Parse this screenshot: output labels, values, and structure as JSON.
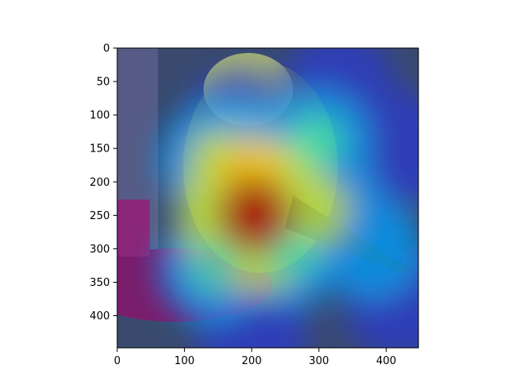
{
  "chart_data": {
    "type": "heatmap",
    "title": "",
    "xlabel": "",
    "ylabel": "",
    "xlim": [
      0,
      448
    ],
    "ylim": [
      448,
      0
    ],
    "x_ticks": [
      0,
      100,
      200,
      300,
      400
    ],
    "y_ticks": [
      0,
      50,
      100,
      150,
      200,
      250,
      300,
      350,
      400
    ],
    "x_tick_labels": [
      "0",
      "100",
      "200",
      "300",
      "400"
    ],
    "y_tick_labels": [
      "0",
      "50",
      "100",
      "150",
      "200",
      "250",
      "300",
      "350",
      "400"
    ],
    "colormap": "jet",
    "background_image": "photo of a yellow-green bird perched on a red feeder",
    "hotspots": [
      {
        "x": 205,
        "y": 250,
        "intensity": 1.0
      },
      {
        "x": 200,
        "y": 190,
        "intensity": 0.85
      },
      {
        "x": 300,
        "y": 240,
        "intensity": 0.7
      },
      {
        "x": 260,
        "y": 300,
        "intensity": 0.55
      },
      {
        "x": 150,
        "y": 170,
        "intensity": 0.6
      },
      {
        "x": 380,
        "y": 300,
        "intensity": 0.4
      },
      {
        "x": 300,
        "y": 140,
        "intensity": 0.45
      },
      {
        "x": 140,
        "y": 330,
        "intensity": 0.45
      }
    ]
  }
}
